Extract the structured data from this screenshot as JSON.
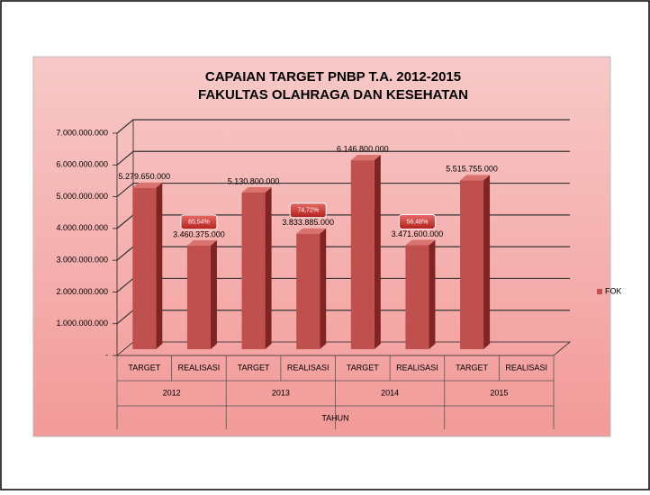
{
  "chart_data": {
    "type": "bar",
    "title": [
      "CAPAIAN TARGET PNBP T.A. 2012-2015",
      "FAKULTAS  OLAHRAGA  DAN KESEHATAN"
    ],
    "categories": [
      "TARGET",
      "REALISASI",
      "TARGET",
      "REALISASI",
      "TARGET",
      "REALISASI",
      "TARGET",
      "REALISASI"
    ],
    "groups": [
      "2012",
      "2013",
      "2014",
      "2015"
    ],
    "x_label": "TAHUN",
    "series": [
      {
        "name": "FOK",
        "color": "#c0504d",
        "values": [
          5279650000,
          3460375000,
          5130800000,
          3833885000,
          6146800000,
          3471600000,
          5515755000,
          null
        ],
        "value_labels": [
          "5.279.650.000",
          "3.460.375.000",
          "5.130.800.000",
          "3.833.885.000",
          "6.146.800.000",
          "3.471.600.000",
          "5.515.755.000",
          null
        ]
      }
    ],
    "annotations": [
      "65,54%",
      "74,72%",
      "56,48%"
    ],
    "ylim": [
      0,
      7000000000
    ],
    "yticks": [
      {
        "value": 0,
        "label": "-"
      },
      {
        "value": 1000000000,
        "label": "1.000.000.000"
      },
      {
        "value": 2000000000,
        "label": "2.000.000.000"
      },
      {
        "value": 3000000000,
        "label": "3.000.000.000"
      },
      {
        "value": 4000000000,
        "label": "4.000.000.000"
      },
      {
        "value": 5000000000,
        "label": "5.000.000.000"
      },
      {
        "value": 6000000000,
        "label": "6.000.000.000"
      },
      {
        "value": 7000000000,
        "label": "7.000.000.000"
      }
    ],
    "grid": true,
    "legend": "right"
  }
}
